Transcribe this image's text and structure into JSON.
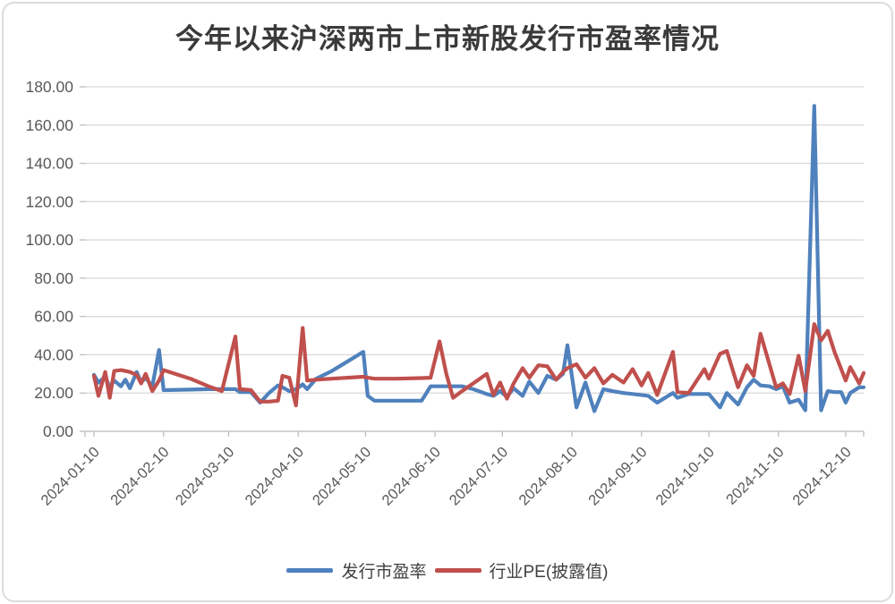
{
  "page": {
    "background": "#ffffff",
    "frame_color": "#dcdcdc"
  },
  "chart_data": {
    "type": "line",
    "title": "今年以来沪深两市上市新股发行市盈率情况",
    "xlabel": "",
    "ylabel": "",
    "ylim": [
      0,
      180
    ],
    "yticks": [
      0,
      20,
      40,
      60,
      80,
      100,
      120,
      140,
      160,
      180
    ],
    "ytick_decimals": 2,
    "xticks": [
      "2024-01-10",
      "2024-02-10",
      "2024-03-10",
      "2024-04-10",
      "2024-05-10",
      "2024-06-10",
      "2024-07-10",
      "2024-08-10",
      "2024-09-10",
      "2024-10-10",
      "2024-11-10",
      "2024-12-10"
    ],
    "grid": "horizontal",
    "legend_position": "bottom",
    "colors": {
      "grid": "#d9d9d9",
      "axis": "#bfbfbf",
      "tick_label": "#595959",
      "title": "#3a3a3a",
      "legend_label": "#404040"
    },
    "x": [
      "2024-01-10",
      "2024-01-12",
      "2024-01-15",
      "2024-01-17",
      "2024-01-19",
      "2024-01-22",
      "2024-01-24",
      "2024-01-26",
      "2024-01-29",
      "2024-01-31",
      "2024-02-02",
      "2024-02-05",
      "2024-02-08",
      "2024-02-10",
      "2024-02-22",
      "2024-03-01",
      "2024-03-07",
      "2024-03-13",
      "2024-03-15",
      "2024-03-20",
      "2024-03-24",
      "2024-03-28",
      "2024-04-01",
      "2024-04-03",
      "2024-04-06",
      "2024-04-09",
      "2024-04-12",
      "2024-04-14",
      "2024-04-18",
      "2024-04-25",
      "2024-05-02",
      "2024-05-09",
      "2024-05-11",
      "2024-05-14",
      "2024-05-24",
      "2024-06-04",
      "2024-06-08",
      "2024-06-12",
      "2024-06-15",
      "2024-06-18",
      "2024-06-22",
      "2024-06-27",
      "2024-07-03",
      "2024-07-06",
      "2024-07-09",
      "2024-07-12",
      "2024-07-15",
      "2024-07-19",
      "2024-07-22",
      "2024-07-26",
      "2024-07-30",
      "2024-08-03",
      "2024-08-06",
      "2024-08-08",
      "2024-08-12",
      "2024-08-16",
      "2024-08-20",
      "2024-08-24",
      "2024-08-28",
      "2024-09-02",
      "2024-09-06",
      "2024-09-10",
      "2024-09-13",
      "2024-09-17",
      "2024-09-24",
      "2024-09-26",
      "2024-10-01",
      "2024-10-08",
      "2024-10-10",
      "2024-10-15",
      "2024-10-18",
      "2024-10-23",
      "2024-10-27",
      "2024-10-30",
      "2024-11-02",
      "2024-11-06",
      "2024-11-09",
      "2024-11-12",
      "2024-11-15",
      "2024-11-19",
      "2024-11-22",
      "2024-11-26",
      "2024-11-29",
      "2024-12-02",
      "2024-12-05",
      "2024-12-08",
      "2024-12-10",
      "2024-12-12",
      "2024-12-16",
      "2024-12-18"
    ],
    "series": [
      {
        "name": "发行市盈率",
        "color": "#4F81BD",
        "values": [
          29.5,
          25.5,
          28.5,
          23,
          26.5,
          23.5,
          27,
          22.5,
          31,
          25.5,
          28,
          23.5,
          42.5,
          21.5,
          21.8,
          22,
          22,
          22,
          20.5,
          20.5,
          15,
          20,
          24,
          23,
          21,
          22,
          24.5,
          22,
          27.5,
          31.5,
          36.5,
          41.5,
          18.5,
          16,
          16,
          16,
          23.5,
          23.5,
          23.5,
          23.5,
          23.5,
          22,
          19.5,
          18.5,
          21,
          18,
          22.5,
          18.5,
          26,
          20,
          29,
          27,
          30,
          45,
          12.5,
          25.5,
          10.5,
          22,
          21,
          20,
          19.5,
          19,
          18.5,
          15,
          20,
          17.5,
          19.5,
          19.5,
          19.5,
          12.5,
          20,
          14,
          23,
          27,
          24,
          23.5,
          22,
          23.5,
          15,
          16.5,
          11,
          170,
          11,
          21,
          20.5,
          20.5,
          15,
          20,
          23,
          23
        ]
      },
      {
        "name": "行业PE(披露值)",
        "color": "#C0504D",
        "values": [
          29,
          18.5,
          31,
          17.5,
          31.5,
          32,
          31.5,
          31,
          29.5,
          25,
          30,
          21,
          26.5,
          32,
          27.5,
          23.5,
          21,
          49.5,
          22,
          21.5,
          15.5,
          15.5,
          16,
          29,
          28,
          13.5,
          54,
          26.5,
          27,
          27.5,
          28,
          28.5,
          28,
          27.5,
          27.5,
          27.8,
          28,
          47,
          30,
          17.5,
          21,
          25,
          30,
          19,
          25.5,
          17,
          25,
          33,
          28,
          34.5,
          34,
          27,
          31,
          33,
          35,
          28,
          33,
          25,
          29.5,
          25.5,
          32.5,
          24,
          30.5,
          19,
          41.5,
          20.5,
          20,
          32.5,
          27.5,
          40.5,
          42,
          23,
          34.5,
          29,
          51,
          35,
          23,
          25,
          19.5,
          39.5,
          21,
          56,
          47.5,
          52.5,
          41.5,
          32.5,
          26.5,
          33.5,
          25,
          30.5
        ]
      }
    ]
  }
}
